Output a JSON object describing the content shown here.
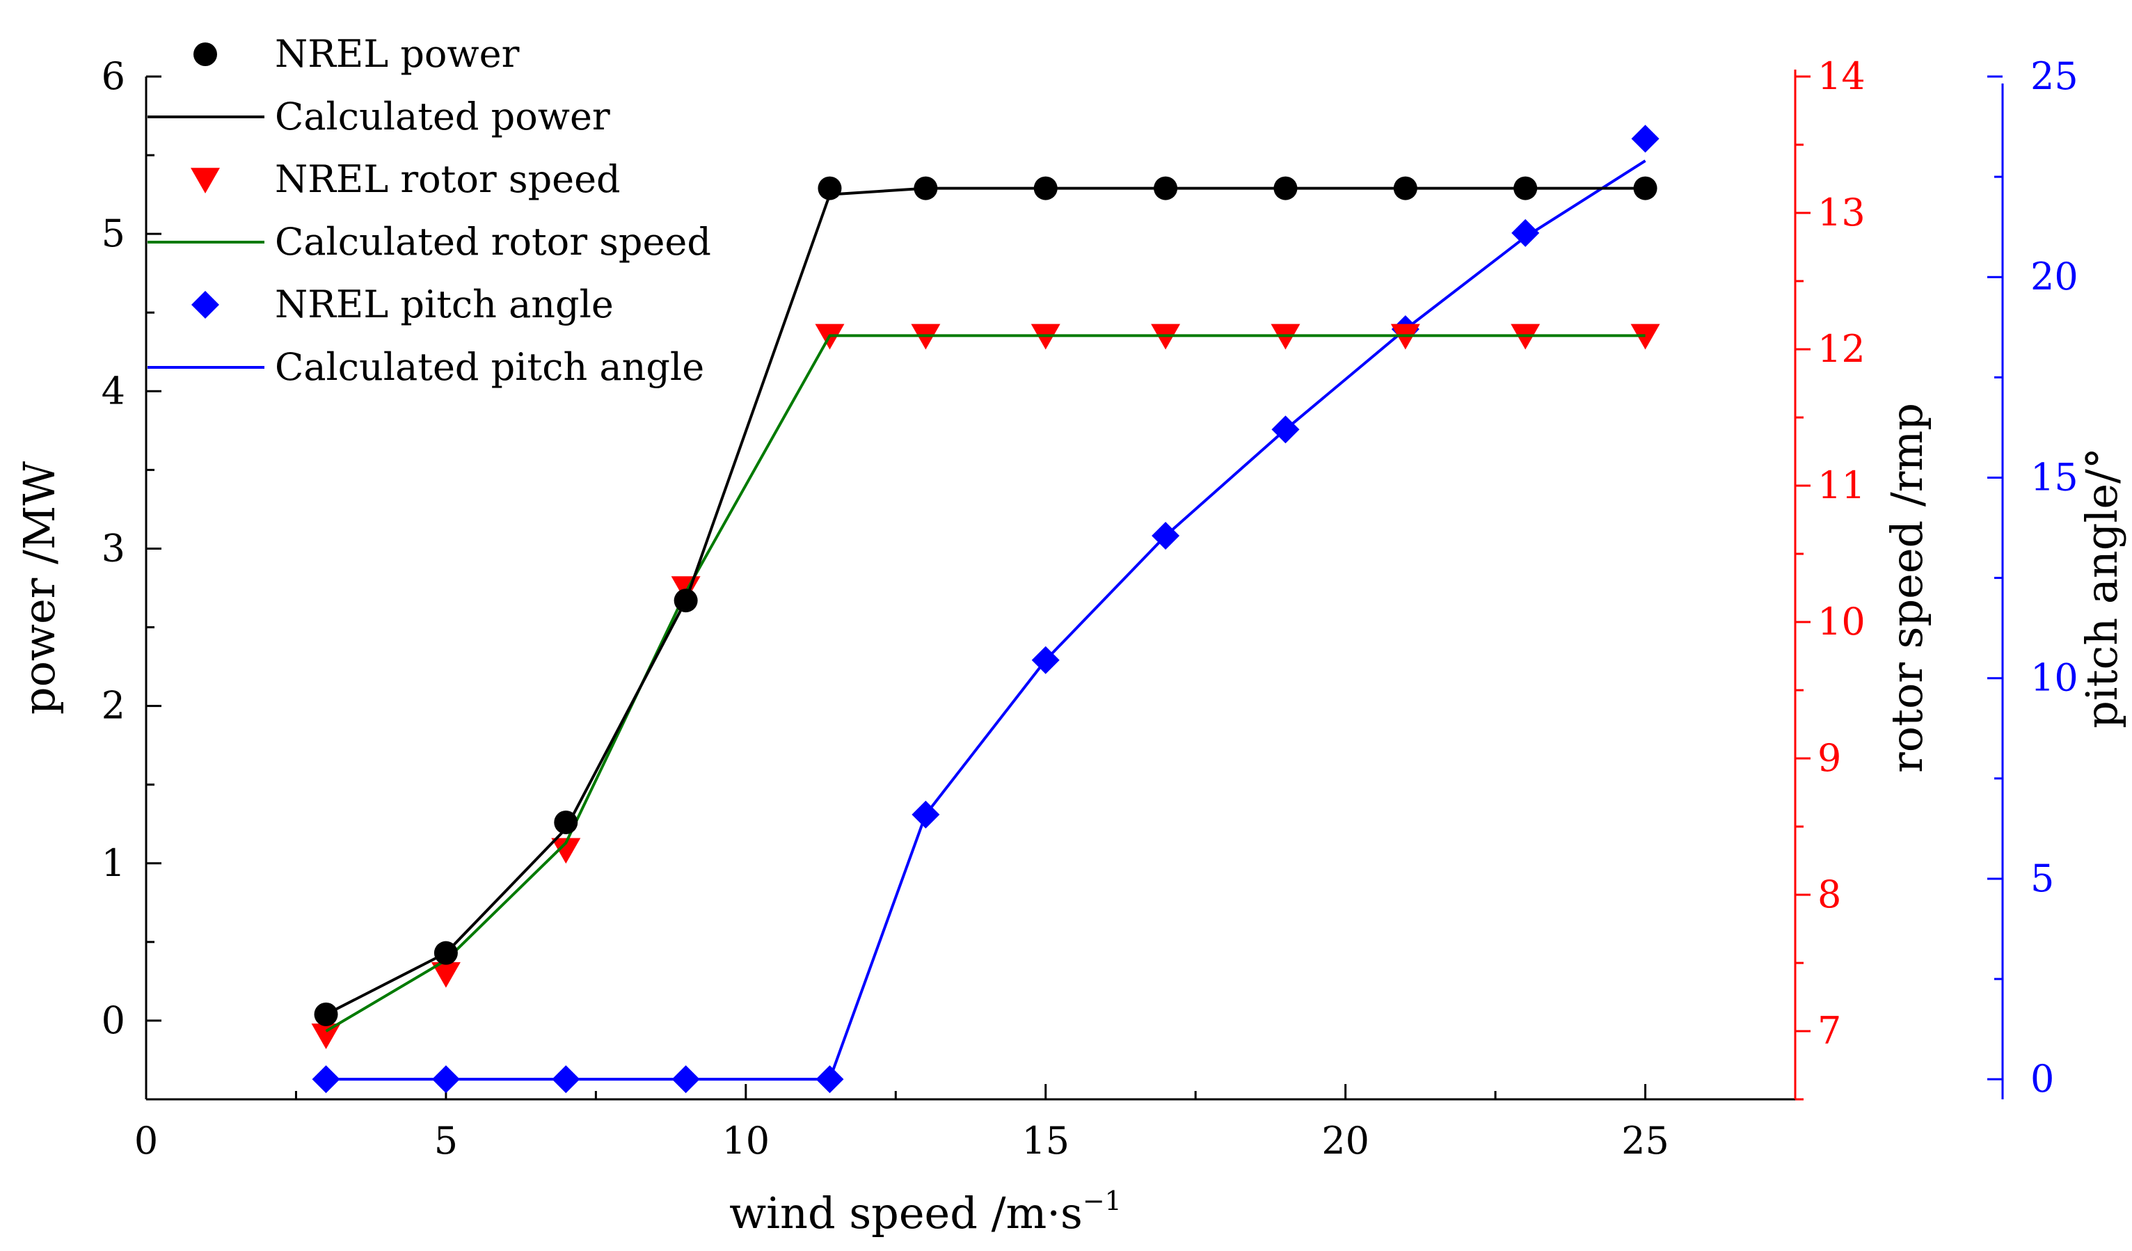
{
  "chart_data": {
    "type": "line",
    "x_axis": {
      "label": "wind speed  /m·s",
      "label_superscript": "−1",
      "range": [
        0,
        27.5
      ],
      "ticks": [
        0,
        5,
        10,
        15,
        20,
        25
      ],
      "minor_ticks": [
        2.5,
        7.5,
        12.5,
        17.5,
        22.5,
        27.5
      ]
    },
    "y_axes": [
      {
        "id": "power",
        "label": "power /MW",
        "color": "#000000",
        "range": [
          -0.5,
          6
        ],
        "ticks": [
          0,
          1,
          2,
          3,
          4,
          5,
          6
        ]
      },
      {
        "id": "rotor",
        "label": "rotor speed /rmp",
        "color": "#ff0000",
        "label_color": "#000000",
        "range": [
          6.5,
          14
        ],
        "ticks": [
          7,
          8,
          9,
          10,
          11,
          12,
          13,
          14
        ]
      },
      {
        "id": "pitch",
        "label": "pitch angle/°",
        "color": "#0000ff",
        "label_color": "#000000",
        "range": [
          -0.5,
          25
        ],
        "ticks": [
          0,
          5,
          10,
          15,
          20,
          25
        ]
      }
    ],
    "series": [
      {
        "name": "NREL power",
        "axis": "power",
        "kind": "marker",
        "marker": "circle",
        "color": "#000000",
        "x": [
          3,
          5,
          7,
          9,
          11.4,
          13,
          15,
          17,
          19,
          21,
          23,
          25
        ],
        "y": [
          0.04,
          0.43,
          1.26,
          2.67,
          5.29,
          5.29,
          5.29,
          5.29,
          5.29,
          5.29,
          5.29,
          5.29
        ]
      },
      {
        "name": "Calculated power",
        "axis": "power",
        "kind": "line",
        "color": "#000000",
        "x": [
          3,
          5,
          7,
          9,
          11.4,
          13,
          15,
          17,
          19,
          21,
          23,
          25
        ],
        "y": [
          0.04,
          0.43,
          1.22,
          2.67,
          5.25,
          5.29,
          5.29,
          5.29,
          5.29,
          5.29,
          5.29,
          5.29
        ]
      },
      {
        "name": "NREL rotor speed",
        "axis": "rotor",
        "kind": "marker",
        "marker": "triangle-down",
        "color": "#ff0000",
        "x": [
          3,
          5,
          7,
          9,
          11.4,
          13,
          15,
          17,
          19,
          21,
          23,
          25
        ],
        "y": [
          6.97,
          7.42,
          8.33,
          10.25,
          12.1,
          12.1,
          12.1,
          12.1,
          12.1,
          12.1,
          12.1,
          12.1
        ]
      },
      {
        "name": "Calculated rotor speed",
        "axis": "rotor",
        "kind": "line",
        "color": "#007a00",
        "x": [
          3,
          5,
          7,
          9,
          11.4,
          13,
          15,
          17,
          19,
          21,
          23,
          25
        ],
        "y": [
          7.0,
          7.52,
          8.38,
          10.22,
          12.1,
          12.1,
          12.1,
          12.1,
          12.1,
          12.1,
          12.1,
          12.1
        ]
      },
      {
        "name": "NREL pitch angle",
        "axis": "pitch",
        "kind": "marker",
        "marker": "diamond",
        "color": "#0000ff",
        "x": [
          3,
          5,
          7,
          9,
          11.4,
          13,
          15,
          17,
          19,
          21,
          23,
          25
        ],
        "y": [
          0,
          0,
          0,
          0,
          0,
          6.6,
          10.45,
          13.55,
          16.2,
          18.7,
          21.1,
          23.45
        ]
      },
      {
        "name": "Calculated pitch angle",
        "axis": "pitch",
        "kind": "line",
        "color": "#0000ff",
        "x": [
          3,
          5,
          7,
          9,
          11.4,
          13,
          15,
          17,
          19,
          21,
          23,
          25
        ],
        "y": [
          0,
          0,
          0,
          0,
          0,
          6.6,
          10.45,
          13.55,
          16.2,
          18.7,
          21.0,
          22.9
        ]
      }
    ],
    "legend": {
      "position": "top-left",
      "entries": [
        "NREL power",
        "Calculated power",
        "NREL rotor speed",
        "Calculated rotor speed",
        "NREL pitch angle",
        "Calculated pitch angle"
      ]
    },
    "grid": false
  }
}
